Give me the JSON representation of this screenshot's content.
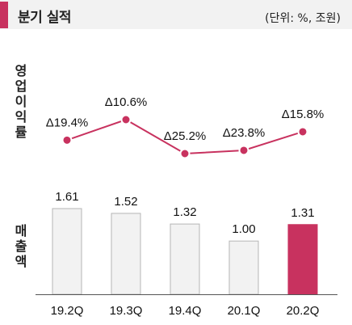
{
  "header": {
    "title": "분기 실적",
    "unit": "(단위: %, 조원)"
  },
  "colors": {
    "accent": "#c8325f",
    "bar_default_fill": "#f2f2f2",
    "bar_default_stroke": "#b5b5b5",
    "header_bg": "#f2f2f2"
  },
  "chart_data": [
    {
      "type": "line",
      "ylabel": "영업이익률",
      "categories": [
        "19.2Q",
        "19.3Q",
        "19.4Q",
        "20.1Q",
        "20.2Q"
      ],
      "values": [
        -19.4,
        -10.6,
        -25.2,
        -23.8,
        -15.8
      ],
      "labels": [
        "Δ19.4%",
        "Δ10.6%",
        "Δ25.2%",
        "Δ23.8%",
        "Δ15.8%"
      ],
      "ylim": [
        -28,
        -8
      ],
      "grid": false
    },
    {
      "type": "bar",
      "ylabel": "매출액",
      "categories": [
        "19.2Q",
        "19.3Q",
        "19.4Q",
        "20.1Q",
        "20.2Q"
      ],
      "values": [
        1.61,
        1.52,
        1.32,
        1.0,
        1.31
      ],
      "labels": [
        "1.61",
        "1.52",
        "1.32",
        "1.00",
        "1.31"
      ],
      "highlight_index": 4,
      "ylim": [
        0,
        1.61
      ],
      "grid": false
    }
  ]
}
